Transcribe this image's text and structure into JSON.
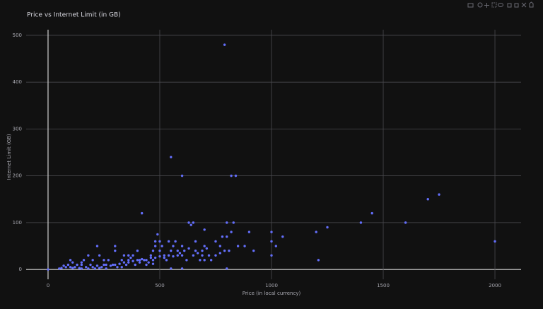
{
  "chart_data": {
    "type": "scatter",
    "title": "Price vs Internet Limit (in GB)",
    "x_label": "Price (in local currency)",
    "y_label": "Internet Limit (GB)",
    "color": "#636efa",
    "grid": true,
    "xlim": [
      -98,
      2117
    ],
    "ylim": [
      -21,
      512
    ],
    "xticks": [
      0,
      500,
      1000,
      1500,
      2000
    ],
    "yticks": [
      0,
      100,
      200,
      300,
      400,
      500
    ],
    "x": [
      790,
      550,
      600,
      820,
      840,
      1750,
      1700,
      1450,
      1400,
      1600,
      2000,
      1250,
      1200,
      1210,
      1000,
      1000,
      1000,
      1050,
      1020,
      900,
      880,
      920,
      850,
      830,
      800,
      820,
      800,
      810,
      800,
      780,
      770,
      750,
      700,
      700,
      690,
      650,
      640,
      630,
      660,
      600,
      600,
      580,
      570,
      560,
      550,
      540,
      520,
      500,
      500,
      490,
      480,
      470,
      460,
      420,
      400,
      410,
      380,
      360,
      340,
      300,
      300,
      290,
      270,
      250,
      230,
      220,
      200,
      190,
      180,
      160,
      150,
      130,
      120,
      110,
      100,
      90,
      80,
      70,
      60,
      50,
      0,
      550,
      600,
      650,
      700,
      720,
      730,
      680,
      620,
      200,
      220,
      240,
      260,
      280,
      300,
      320,
      340,
      360,
      380,
      400,
      420,
      440,
      460,
      480,
      500,
      520,
      540,
      560,
      580,
      440,
      410,
      350,
      330,
      310,
      210,
      170,
      140,
      100,
      110,
      150,
      180,
      230,
      260,
      330,
      370,
      390,
      450,
      470,
      530,
      590,
      610,
      630,
      660,
      670,
      690,
      710,
      750,
      770,
      790,
      480,
      510,
      470,
      430,
      360,
      250,
      150
    ],
    "y": [
      480,
      240,
      200,
      200,
      200,
      160,
      150,
      120,
      100,
      100,
      60,
      90,
      80,
      20,
      80,
      60,
      30,
      70,
      50,
      80,
      50,
      40,
      50,
      100,
      100,
      80,
      70,
      40,
      2,
      70,
      50,
      60,
      85,
      50,
      40,
      100,
      95,
      100,
      60,
      50,
      30,
      40,
      60,
      50,
      40,
      60,
      30,
      60,
      40,
      75,
      50,
      20,
      30,
      120,
      40,
      20,
      30,
      20,
      30,
      50,
      40,
      10,
      20,
      10,
      30,
      50,
      20,
      10,
      30,
      20,
      10,
      10,
      5,
      15,
      20,
      10,
      5,
      8,
      3,
      2,
      0,
      2,
      2,
      30,
      20,
      30,
      20,
      20,
      20,
      5,
      8,
      5,
      10,
      8,
      10,
      12,
      15,
      15,
      18,
      20,
      22,
      20,
      25,
      25,
      28,
      25,
      30,
      28,
      30,
      10,
      15,
      10,
      5,
      5,
      2,
      5,
      3,
      5,
      3,
      2,
      2,
      3,
      2,
      20,
      25,
      10,
      15,
      12,
      20,
      35,
      40,
      45,
      40,
      35,
      30,
      45,
      30,
      35,
      40,
      60,
      50,
      40,
      20,
      30,
      20,
      15
    ]
  }
}
